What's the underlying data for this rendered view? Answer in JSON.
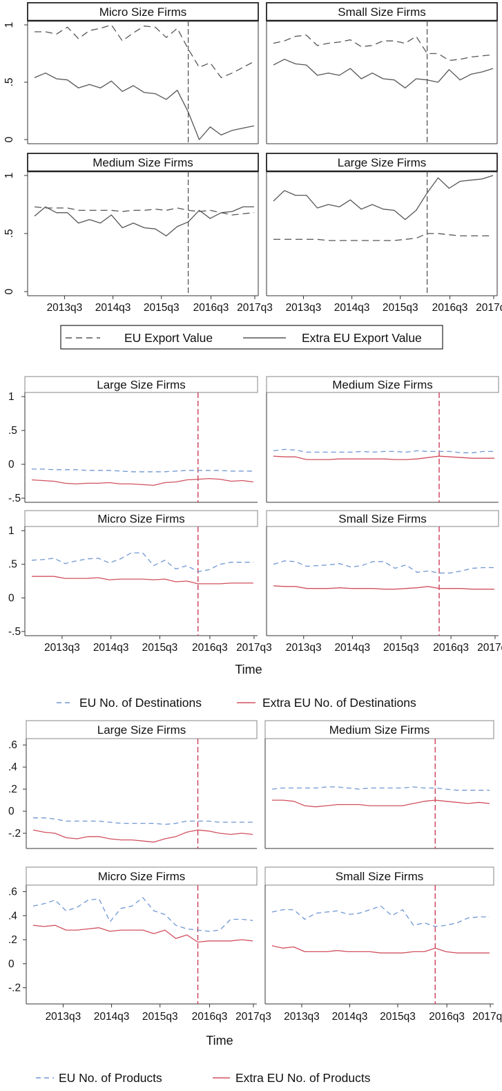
{
  "x_ticks": [
    "2013q3",
    "2014q3",
    "2015q3",
    "2016q3",
    "2017q3"
  ],
  "chart_data": [
    {
      "type": "line",
      "xlabel": "",
      "ylim": [
        0,
        1
      ],
      "yticks": [
        "0",
        ".5",
        "1"
      ],
      "legend": {
        "placement": "bottom",
        "entries": [
          {
            "label": "EU Export Value",
            "style": "dashed",
            "color": "#555555"
          },
          {
            "label": "Extra EU Export Value",
            "style": "solid",
            "color": "#555555"
          }
        ]
      },
      "event_line_x": "2016q2",
      "event_line_color": "#555555",
      "x": [
        "2012q4",
        "2013q1",
        "2013q2",
        "2013q3",
        "2013q4",
        "2014q1",
        "2014q2",
        "2014q3",
        "2014q4",
        "2015q1",
        "2015q2",
        "2015q3",
        "2015q4",
        "2016q1",
        "2016q2",
        "2016q3",
        "2016q4",
        "2017q1",
        "2017q2",
        "2017q3",
        "2017q4"
      ],
      "panels": [
        {
          "title": "Micro Size Firms",
          "series": [
            {
              "values": [
                0.94,
                0.94,
                0.92,
                0.98,
                0.88,
                0.95,
                0.97,
                1.0,
                0.86,
                0.93,
                0.99,
                0.98,
                0.89,
                0.97,
                0.79,
                0.63,
                0.67,
                0.54,
                0.58,
                0.63,
                0.68
              ]
            },
            {
              "values": [
                0.54,
                0.58,
                0.53,
                0.52,
                0.45,
                0.48,
                0.45,
                0.51,
                0.42,
                0.47,
                0.41,
                0.4,
                0.35,
                0.43,
                0.24,
                0.0,
                0.11,
                0.04,
                0.08,
                0.1,
                0.12
              ]
            }
          ]
        },
        {
          "title": "Small Size Firms",
          "series": [
            {
              "values": [
                0.84,
                0.86,
                0.9,
                0.91,
                0.82,
                0.84,
                0.85,
                0.87,
                0.81,
                0.82,
                0.86,
                0.86,
                0.84,
                0.9,
                0.75,
                0.75,
                0.69,
                0.7,
                0.72,
                0.73,
                0.74
              ]
            },
            {
              "values": [
                0.65,
                0.7,
                0.66,
                0.65,
                0.56,
                0.58,
                0.56,
                0.62,
                0.53,
                0.58,
                0.53,
                0.52,
                0.45,
                0.53,
                0.52,
                0.5,
                0.61,
                0.52,
                0.57,
                0.59,
                0.62
              ]
            }
          ]
        },
        {
          "title": "Medium Size Firms",
          "series": [
            {
              "values": [
                0.73,
                0.72,
                0.72,
                0.72,
                0.7,
                0.7,
                0.7,
                0.7,
                0.69,
                0.7,
                0.7,
                0.71,
                0.7,
                0.72,
                0.7,
                0.69,
                0.7,
                0.68,
                0.66,
                0.67,
                0.68
              ]
            },
            {
              "values": [
                0.65,
                0.73,
                0.68,
                0.68,
                0.59,
                0.62,
                0.59,
                0.66,
                0.55,
                0.59,
                0.55,
                0.54,
                0.48,
                0.56,
                0.6,
                0.7,
                0.63,
                0.68,
                0.69,
                0.73,
                0.73
              ]
            }
          ]
        },
        {
          "title": "Large Size Firms",
          "series": [
            {
              "values": [
                0.45,
                0.45,
                0.45,
                0.45,
                0.45,
                0.44,
                0.44,
                0.44,
                0.44,
                0.44,
                0.44,
                0.44,
                0.45,
                0.46,
                0.5,
                0.5,
                0.49,
                0.48,
                0.48,
                0.48,
                0.48
              ]
            },
            {
              "values": [
                0.78,
                0.87,
                0.83,
                0.83,
                0.72,
                0.75,
                0.73,
                0.79,
                0.71,
                0.75,
                0.71,
                0.7,
                0.62,
                0.7,
                0.85,
                0.98,
                0.89,
                0.95,
                0.96,
                0.97,
                1.0
              ]
            }
          ]
        }
      ]
    },
    {
      "type": "line",
      "xlabel": "Time",
      "ylim": [
        -0.5,
        1
      ],
      "yticks": [
        "-.5",
        "0",
        ".5",
        "1"
      ],
      "legend": {
        "placement": "bottom",
        "entries": [
          {
            "label": "EU No. of Destinations",
            "style": "dashed",
            "color": "#6f97d4"
          },
          {
            "label": "Extra EU No. of Destinations",
            "style": "solid",
            "color": "#d1505e"
          }
        ]
      },
      "event_line_x": "2016q3",
      "event_line_color": "#cc3d57",
      "x": [
        "2012q4",
        "2013q1",
        "2013q2",
        "2013q3",
        "2013q4",
        "2014q1",
        "2014q2",
        "2014q3",
        "2014q4",
        "2015q1",
        "2015q2",
        "2015q3",
        "2015q4",
        "2016q1",
        "2016q2",
        "2016q3",
        "2016q4",
        "2017q1",
        "2017q2",
        "2017q3",
        "2017q4"
      ],
      "panels": [
        {
          "title": "Large Size Firms",
          "series": [
            {
              "values": [
                -0.07,
                -0.07,
                -0.08,
                -0.08,
                -0.08,
                -0.09,
                -0.09,
                -0.09,
                -0.1,
                -0.11,
                -0.11,
                -0.11,
                -0.11,
                -0.1,
                -0.09,
                -0.09,
                -0.09,
                -0.09,
                -0.1,
                -0.1,
                -0.1
              ]
            },
            {
              "values": [
                -0.23,
                -0.24,
                -0.25,
                -0.28,
                -0.29,
                -0.28,
                -0.28,
                -0.27,
                -0.29,
                -0.29,
                -0.3,
                -0.31,
                -0.27,
                -0.26,
                -0.23,
                -0.22,
                -0.21,
                -0.22,
                -0.25,
                -0.24,
                -0.26
              ]
            }
          ]
        },
        {
          "title": "Medium Size Firms",
          "series": [
            {
              "values": [
                0.2,
                0.22,
                0.21,
                0.18,
                0.18,
                0.18,
                0.18,
                0.18,
                0.19,
                0.18,
                0.19,
                0.19,
                0.18,
                0.2,
                0.19,
                0.19,
                0.19,
                0.17,
                0.17,
                0.19,
                0.19
              ]
            },
            {
              "values": [
                0.12,
                0.11,
                0.11,
                0.07,
                0.07,
                0.07,
                0.08,
                0.08,
                0.08,
                0.08,
                0.08,
                0.07,
                0.07,
                0.08,
                0.1,
                0.12,
                0.11,
                0.1,
                0.09,
                0.09,
                0.09
              ]
            }
          ]
        },
        {
          "title": "Micro Size Firms",
          "series": [
            {
              "values": [
                0.56,
                0.57,
                0.59,
                0.51,
                0.55,
                0.58,
                0.59,
                0.52,
                0.58,
                0.67,
                0.67,
                0.48,
                0.56,
                0.43,
                0.48,
                0.39,
                0.42,
                0.5,
                0.53,
                0.53,
                0.53
              ]
            },
            {
              "values": [
                0.32,
                0.32,
                0.32,
                0.29,
                0.29,
                0.29,
                0.3,
                0.27,
                0.28,
                0.28,
                0.28,
                0.27,
                0.28,
                0.24,
                0.25,
                0.21,
                0.21,
                0.21,
                0.22,
                0.22,
                0.22
              ]
            }
          ]
        },
        {
          "title": "Small Size Firms",
          "series": [
            {
              "values": [
                0.5,
                0.55,
                0.54,
                0.47,
                0.48,
                0.49,
                0.51,
                0.46,
                0.48,
                0.54,
                0.54,
                0.44,
                0.49,
                0.38,
                0.4,
                0.37,
                0.37,
                0.4,
                0.44,
                0.45,
                0.45
              ]
            },
            {
              "values": [
                0.18,
                0.17,
                0.17,
                0.14,
                0.14,
                0.14,
                0.15,
                0.14,
                0.14,
                0.14,
                0.13,
                0.13,
                0.14,
                0.15,
                0.17,
                0.14,
                0.14,
                0.14,
                0.13,
                0.13,
                0.13
              ]
            }
          ]
        }
      ]
    },
    {
      "type": "line",
      "xlabel": "Time",
      "ylim": [
        -0.3,
        0.62
      ],
      "yticks": [
        "-.2",
        "0",
        ".2",
        ".4",
        ".6"
      ],
      "legend": {
        "placement": "bottom",
        "entries": [
          {
            "label": "EU No. of Products",
            "style": "dashed",
            "color": "#6f97d4"
          },
          {
            "label": "Extra EU No. of Products",
            "style": "solid",
            "color": "#d1505e"
          }
        ]
      },
      "event_line_x": "2016q3",
      "event_line_color": "#cc3d57",
      "x": [
        "2012q4",
        "2013q1",
        "2013q2",
        "2013q3",
        "2013q4",
        "2014q1",
        "2014q2",
        "2014q3",
        "2014q4",
        "2015q1",
        "2015q2",
        "2015q3",
        "2015q4",
        "2016q1",
        "2016q2",
        "2016q3",
        "2016q4",
        "2017q1",
        "2017q2",
        "2017q3",
        "2017q4"
      ],
      "panels": [
        {
          "title": "Large Size Firms",
          "series": [
            {
              "values": [
                -0.06,
                -0.06,
                -0.07,
                -0.09,
                -0.09,
                -0.09,
                -0.09,
                -0.1,
                -0.11,
                -0.11,
                -0.11,
                -0.11,
                -0.12,
                -0.11,
                -0.09,
                -0.09,
                -0.09,
                -0.1,
                -0.1,
                -0.1,
                -0.1
              ]
            },
            {
              "values": [
                -0.17,
                -0.19,
                -0.2,
                -0.24,
                -0.25,
                -0.23,
                -0.23,
                -0.25,
                -0.26,
                -0.26,
                -0.27,
                -0.28,
                -0.25,
                -0.23,
                -0.19,
                -0.17,
                -0.18,
                -0.2,
                -0.21,
                -0.2,
                -0.21
              ]
            }
          ]
        },
        {
          "title": "Medium Size Firms",
          "series": [
            {
              "values": [
                0.2,
                0.21,
                0.21,
                0.21,
                0.21,
                0.22,
                0.22,
                0.21,
                0.2,
                0.21,
                0.21,
                0.21,
                0.21,
                0.22,
                0.21,
                0.21,
                0.2,
                0.19,
                0.19,
                0.19,
                0.19
              ]
            },
            {
              "values": [
                0.1,
                0.1,
                0.09,
                0.05,
                0.04,
                0.05,
                0.06,
                0.06,
                0.06,
                0.05,
                0.05,
                0.05,
                0.05,
                0.07,
                0.09,
                0.1,
                0.09,
                0.08,
                0.07,
                0.08,
                0.07
              ]
            }
          ]
        },
        {
          "title": "Micro Size Firms",
          "series": [
            {
              "values": [
                0.48,
                0.5,
                0.53,
                0.44,
                0.47,
                0.53,
                0.54,
                0.35,
                0.46,
                0.48,
                0.55,
                0.44,
                0.41,
                0.32,
                0.29,
                0.28,
                0.27,
                0.28,
                0.37,
                0.37,
                0.36
              ]
            },
            {
              "values": [
                0.32,
                0.31,
                0.32,
                0.28,
                0.28,
                0.29,
                0.3,
                0.27,
                0.28,
                0.28,
                0.28,
                0.25,
                0.28,
                0.21,
                0.24,
                0.18,
                0.19,
                0.19,
                0.19,
                0.2,
                0.19
              ]
            }
          ]
        },
        {
          "title": "Small Size Firms",
          "series": [
            {
              "values": [
                0.43,
                0.45,
                0.45,
                0.37,
                0.42,
                0.43,
                0.44,
                0.41,
                0.42,
                0.45,
                0.48,
                0.4,
                0.45,
                0.32,
                0.34,
                0.31,
                0.32,
                0.34,
                0.38,
                0.39,
                0.39
              ]
            },
            {
              "values": [
                0.15,
                0.13,
                0.14,
                0.1,
                0.1,
                0.1,
                0.11,
                0.1,
                0.1,
                0.1,
                0.09,
                0.09,
                0.09,
                0.1,
                0.1,
                0.13,
                0.1,
                0.09,
                0.09,
                0.09,
                0.09
              ]
            }
          ]
        }
      ]
    }
  ]
}
